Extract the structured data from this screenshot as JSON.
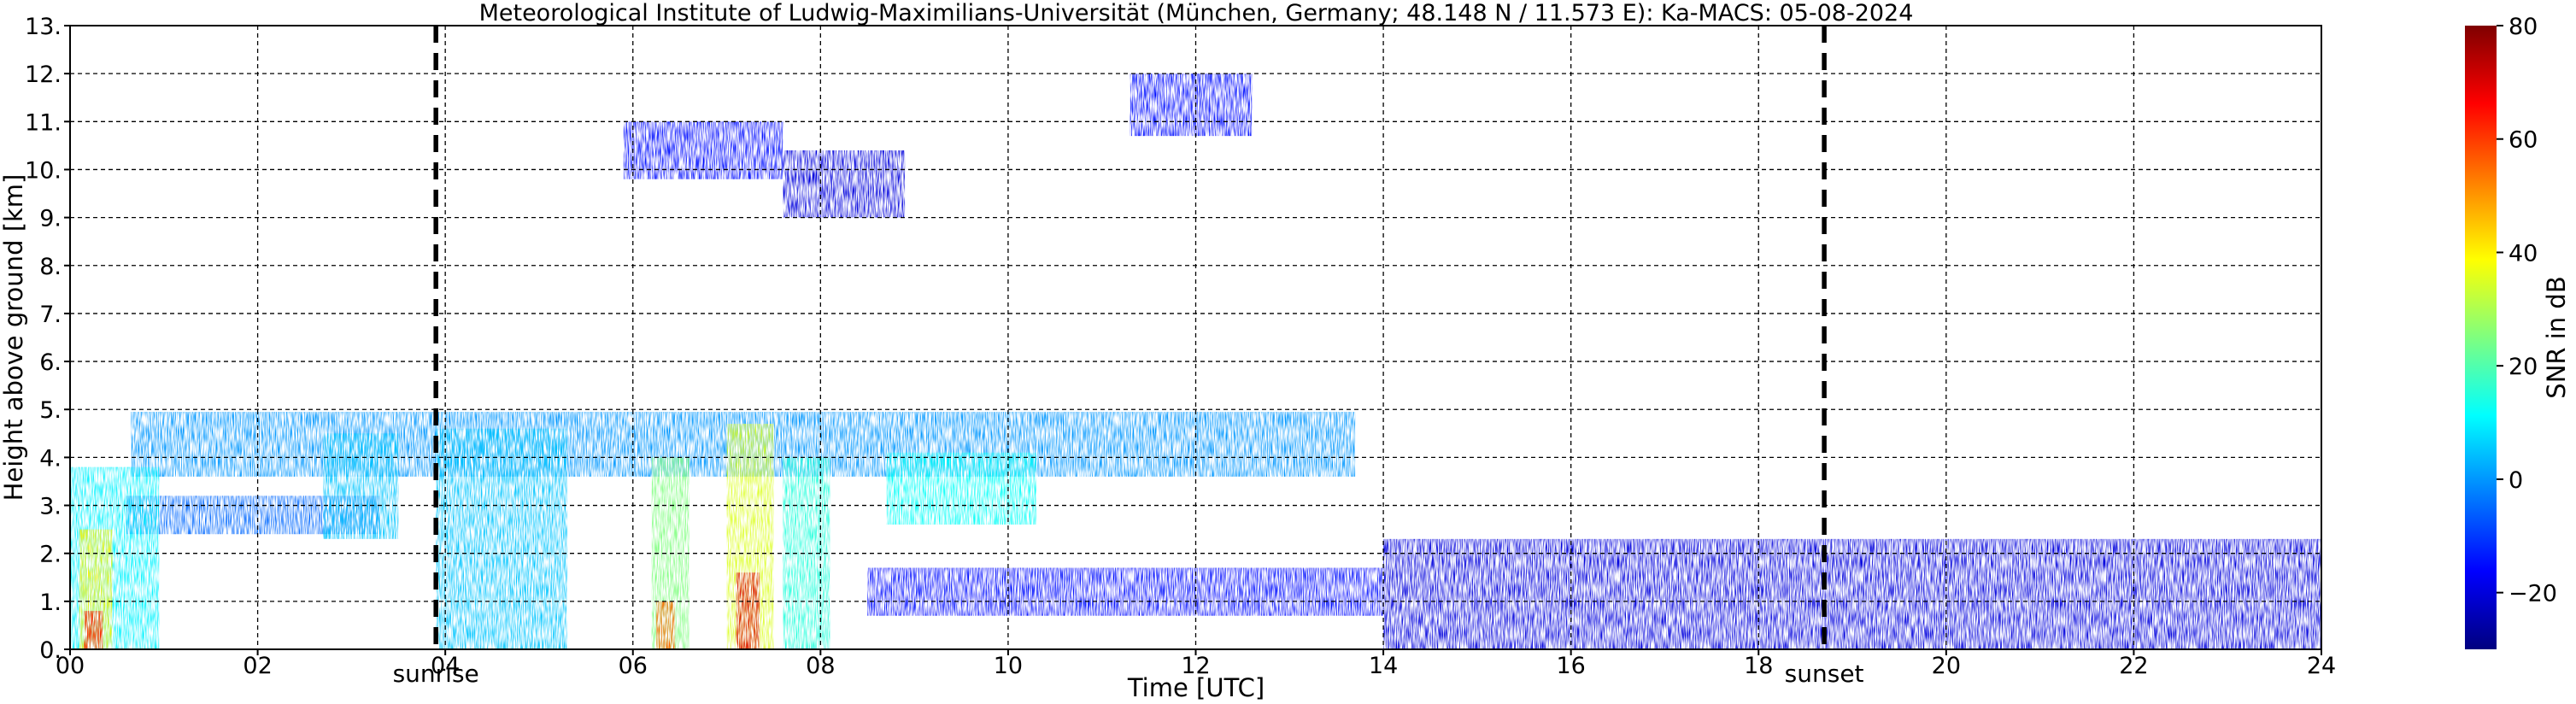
{
  "chart_data": {
    "type": "heatmap",
    "title": "Meteorological Institute of Ludwig-Maximilians-Universität (München, Germany; 48.148 N / 11.573 E):    Ka-MACS: 05-08-2024",
    "xlabel": "Time [UTC]",
    "ylabel": "Height above ground [km]",
    "xlim": [
      0,
      24
    ],
    "ylim": [
      0,
      13
    ],
    "x_ticks": [
      "00",
      "02",
      "04",
      "06",
      "08",
      "10",
      "12",
      "14",
      "16",
      "18",
      "20",
      "22",
      "24"
    ],
    "x_tick_values": [
      0,
      2,
      4,
      6,
      8,
      10,
      12,
      14,
      16,
      18,
      20,
      22,
      24
    ],
    "y_ticks": [
      "0.",
      "1.",
      "2.",
      "3.",
      "4.",
      "5.",
      "6.",
      "7.",
      "8.",
      "9.",
      "10.",
      "11.",
      "12.",
      "13."
    ],
    "y_tick_values": [
      0,
      1,
      2,
      3,
      4,
      5,
      6,
      7,
      8,
      9,
      10,
      11,
      12,
      13
    ],
    "grid": true,
    "colorbar": {
      "label": "SNR in dB",
      "range": [
        -30,
        80
      ],
      "ticks": [
        "−20",
        "0",
        "20",
        "40",
        "60",
        "80"
      ],
      "tick_values": [
        -20,
        0,
        20,
        40,
        60,
        80
      ],
      "colormap": "jet"
    },
    "events": [
      {
        "label": "sunrise",
        "time": 3.9
      },
      {
        "label": "sunset",
        "time": 18.7
      }
    ],
    "echo_regions": [
      {
        "t0": 0.65,
        "t1": 13.7,
        "h0": 3.6,
        "h1": 4.95,
        "snr": 0
      },
      {
        "t0": 0.0,
        "t1": 0.95,
        "h0": 0.0,
        "h1": 3.8,
        "snr": 10
      },
      {
        "t0": 0.1,
        "t1": 0.45,
        "h0": 0.0,
        "h1": 2.5,
        "snr": 40
      },
      {
        "t0": 0.15,
        "t1": 0.35,
        "h0": 0.0,
        "h1": 0.8,
        "snr": 65
      },
      {
        "t0": 3.9,
        "t1": 5.3,
        "h0": 0.0,
        "h1": 4.6,
        "snr": 5
      },
      {
        "t0": 6.2,
        "t1": 6.6,
        "h0": 0.0,
        "h1": 4.0,
        "snr": 25
      },
      {
        "t0": 6.25,
        "t1": 6.45,
        "h0": 0.0,
        "h1": 1.0,
        "snr": 55
      },
      {
        "t0": 7.0,
        "t1": 7.5,
        "h0": 0.0,
        "h1": 4.7,
        "snr": 35
      },
      {
        "t0": 7.1,
        "t1": 7.35,
        "h0": 0.0,
        "h1": 1.6,
        "snr": 70
      },
      {
        "t0": 7.6,
        "t1": 8.1,
        "h0": 0.0,
        "h1": 4.0,
        "snr": 15
      },
      {
        "t0": 8.7,
        "t1": 10.3,
        "h0": 2.6,
        "h1": 4.1,
        "snr": 12
      },
      {
        "t0": 2.7,
        "t1": 3.5,
        "h0": 2.3,
        "h1": 4.5,
        "snr": 5
      },
      {
        "t0": 5.9,
        "t1": 7.6,
        "h0": 9.8,
        "h1": 11.0,
        "snr": -15
      },
      {
        "t0": 7.6,
        "t1": 8.9,
        "h0": 9.0,
        "h1": 10.4,
        "snr": -20
      },
      {
        "t0": 11.3,
        "t1": 12.6,
        "h0": 10.7,
        "h1": 12.0,
        "snr": -15
      },
      {
        "t0": 0.6,
        "t1": 3.3,
        "h0": 2.4,
        "h1": 3.2,
        "snr": -5
      },
      {
        "t0": 8.5,
        "t1": 14.0,
        "h0": 0.7,
        "h1": 1.7,
        "snr": -15
      },
      {
        "t0": 14.0,
        "t1": 24.0,
        "h0": 0.0,
        "h1": 2.3,
        "snr": -20
      }
    ]
  }
}
